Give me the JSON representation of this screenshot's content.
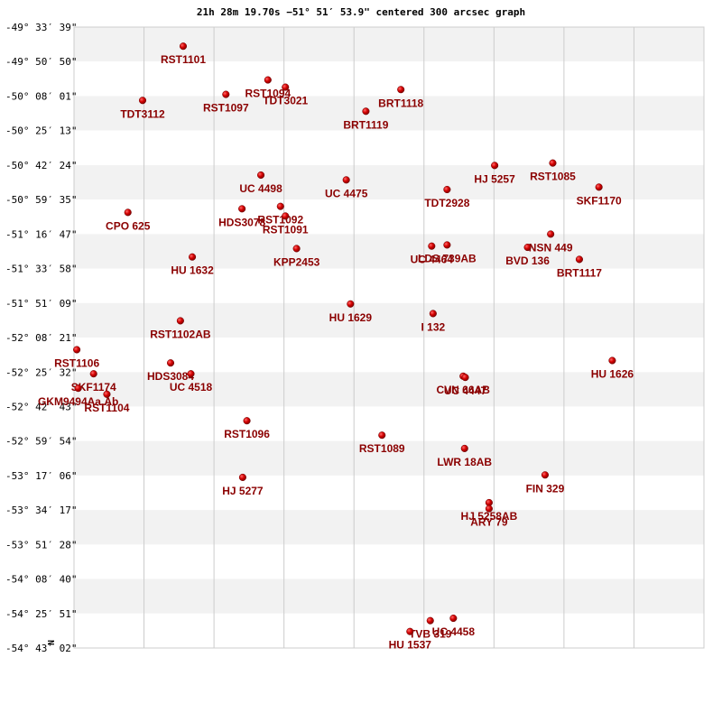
{
  "chart_data": {
    "type": "scatter",
    "title": "21h 28m 19.70s −51° 51′ 53.9\" centered 300 arcsec graph",
    "xlabel": "",
    "ylabel": "N",
    "ylim_deg": [
      -54.717,
      -49.561
    ],
    "xlim": [
      0,
      9
    ],
    "grid": true,
    "y_ticks": [
      {
        "label": "-49° 33′ 39\"",
        "value": -49.561
      },
      {
        "label": "-49° 50′ 50\"",
        "value": -49.847
      },
      {
        "label": "-50° 08′ 01\"",
        "value": -50.134
      },
      {
        "label": "-50° 25′ 13\"",
        "value": -50.42
      },
      {
        "label": "-50° 42′ 24\"",
        "value": -50.707
      },
      {
        "label": "-50° 59′ 35\"",
        "value": -50.993
      },
      {
        "label": "-51° 16′ 47\"",
        "value": -51.28
      },
      {
        "label": "-51° 33′ 58\"",
        "value": -51.566
      },
      {
        "label": "-51° 51′ 09\"",
        "value": -51.853
      },
      {
        "label": "-52° 08′ 21\"",
        "value": -52.139
      },
      {
        "label": "-52° 25′ 32\"",
        "value": -52.426
      },
      {
        "label": "-52° 42′ 43\"",
        "value": -52.712
      },
      {
        "label": "-52° 59′ 54\"",
        "value": -52.998
      },
      {
        "label": "-53° 17′ 06\"",
        "value": -53.285
      },
      {
        "label": "-53° 34′ 17\"",
        "value": -53.571
      },
      {
        "label": "-53° 51′ 28\"",
        "value": -53.858
      },
      {
        "label": "-54° 08′ 40\"",
        "value": -54.144
      },
      {
        "label": "-54° 25′ 51\"",
        "value": -54.431
      },
      {
        "label": "-54° 43′ 02\"",
        "value": -54.717
      }
    ],
    "points": [
      {
        "name": "RST1101",
        "x": 1.56,
        "y": -49.72
      },
      {
        "name": "TDT3112",
        "x": 0.98,
        "y": -50.17
      },
      {
        "name": "RST1097",
        "x": 2.17,
        "y": -50.12
      },
      {
        "name": "RST1094",
        "x": 2.77,
        "y": -50.0
      },
      {
        "name": "TDT3021",
        "x": 3.02,
        "y": -50.06
      },
      {
        "name": "BRT1118",
        "x": 4.67,
        "y": -50.08
      },
      {
        "name": "BRT1119",
        "x": 4.17,
        "y": -50.26
      },
      {
        "name": "UC 4498",
        "x": 2.67,
        "y": -50.79
      },
      {
        "name": "UC 4475",
        "x": 3.89,
        "y": -50.83
      },
      {
        "name": "HJ 5257",
        "x": 6.01,
        "y": -50.71
      },
      {
        "name": "RST1085",
        "x": 6.84,
        "y": -50.69
      },
      {
        "name": "SKF1170",
        "x": 7.5,
        "y": -50.89
      },
      {
        "name": "TDT2928",
        "x": 5.33,
        "y": -50.91
      },
      {
        "name": "HDS3078",
        "x": 2.4,
        "y": -51.07
      },
      {
        "name": "RST1092",
        "x": 2.95,
        "y": -51.05
      },
      {
        "name": "RST1091",
        "x": 3.02,
        "y": -51.13
      },
      {
        "name": "CPO 625",
        "x": 0.77,
        "y": -51.1
      },
      {
        "name": "HU 1632",
        "x": 1.69,
        "y": -51.47
      },
      {
        "name": "KPP2453",
        "x": 3.18,
        "y": -51.4
      },
      {
        "name": "UC 4464",
        "x": 5.11,
        "y": -51.38
      },
      {
        "name": "LDS 739AB",
        "x": 5.33,
        "y": -51.37
      },
      {
        "name": "NSN 449",
        "x": 6.81,
        "y": -51.28
      },
      {
        "name": "BVD 136",
        "x": 6.48,
        "y": -51.39
      },
      {
        "name": "BRT1117",
        "x": 7.22,
        "y": -51.49
      },
      {
        "name": "HU 1629",
        "x": 3.95,
        "y": -51.86
      },
      {
        "name": "I   132",
        "x": 5.13,
        "y": -51.94
      },
      {
        "name": "RST1102AB",
        "x": 1.52,
        "y": -52.0
      },
      {
        "name": "RST1106",
        "x": 0.04,
        "y": -52.24
      },
      {
        "name": "HDS3084",
        "x": 1.38,
        "y": -52.35
      },
      {
        "name": "UC 4518",
        "x": 1.67,
        "y": -52.44
      },
      {
        "name": "SKF1174",
        "x": 0.28,
        "y": -52.44
      },
      {
        "name": "GKM9494Aa,Ab",
        "x": 0.06,
        "y": -52.56
      },
      {
        "name": "RST1104",
        "x": 0.47,
        "y": -52.61
      },
      {
        "name": "HU 1626",
        "x": 7.69,
        "y": -52.33
      },
      {
        "name": "CVN  66AB",
        "x": 5.56,
        "y": -52.46
      },
      {
        "name": "UC 4447",
        "x": 5.59,
        "y": -52.47
      },
      {
        "name": "RST1096",
        "x": 2.47,
        "y": -52.83
      },
      {
        "name": "RST1089",
        "x": 4.4,
        "y": -52.95
      },
      {
        "name": "LWR  18AB",
        "x": 5.58,
        "y": -53.06
      },
      {
        "name": "HJ 5277",
        "x": 2.41,
        "y": -53.3
      },
      {
        "name": "FIN 329",
        "x": 6.73,
        "y": -53.28
      },
      {
        "name": "HJ 5258AB",
        "x": 5.93,
        "y": -53.51
      },
      {
        "name": "ARY  79",
        "x": 5.93,
        "y": -53.56
      },
      {
        "name": "TVB 319",
        "x": 5.09,
        "y": -54.49
      },
      {
        "name": "UC 4458",
        "x": 5.42,
        "y": -54.47
      },
      {
        "name": "HU 1537",
        "x": 4.8,
        "y": -54.58
      }
    ]
  }
}
